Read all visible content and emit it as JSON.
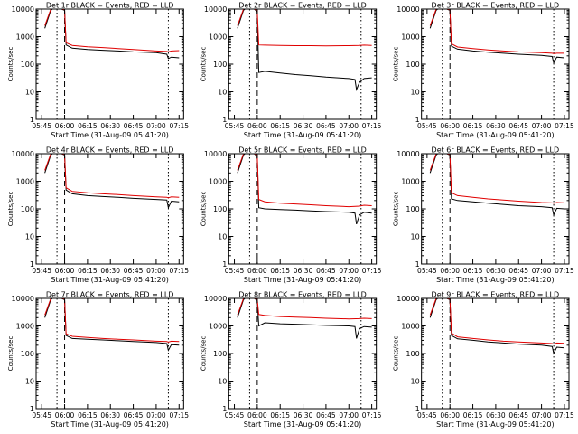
{
  "chart_data": [
    {
      "type": "line",
      "title": "Det 1r BLACK = Events, RED = LLD",
      "xlabel": "Start Time (31-Aug-09 05:41:20)",
      "ylabel": "Counts/sec",
      "yscale": "log",
      "ylim": [
        1,
        10000
      ],
      "x_ticks": [
        "05:45",
        "06:00",
        "06:15",
        "06:30",
        "06:45",
        "07:00",
        "07:15"
      ],
      "y_ticks": [
        "1",
        "10",
        "100",
        "1000",
        "10000"
      ],
      "grid": false,
      "dashed_marker": "06:00",
      "dotted_markers": [
        "05:55",
        "07:08"
      ],
      "series": [
        {
          "name": "Events",
          "color": "#000000",
          "x": [
            "05:47",
            "05:51",
            "05:52",
            "05:55",
            "05:58",
            "06:00",
            "06:01",
            "06:05",
            "06:15",
            "06:25",
            "06:35",
            "06:45",
            "07:00",
            "07:07",
            "07:08",
            "07:10",
            "07:15"
          ],
          "y": [
            2000,
            9000,
            10000,
            10000,
            10000,
            9000,
            500,
            380,
            340,
            320,
            300,
            280,
            260,
            230,
            160,
            180,
            170
          ]
        },
        {
          "name": "LLD",
          "color": "#e00000",
          "x": [
            "05:47",
            "05:51",
            "05:52",
            "05:55",
            "05:58",
            "06:00",
            "06:01",
            "06:05",
            "06:15",
            "06:25",
            "06:35",
            "06:45",
            "07:00",
            "07:07",
            "07:08",
            "07:10",
            "07:15"
          ],
          "y": [
            2500,
            10000,
            10000,
            10000,
            10000,
            9500,
            600,
            480,
            430,
            400,
            370,
            340,
            300,
            290,
            280,
            300,
            310
          ]
        }
      ]
    },
    {
      "type": "line",
      "title": "Det 2r BLACK = Events, RED = LLD",
      "xlabel": "Start Time (31-Aug-09 05:41:20)",
      "ylabel": "Counts/sec",
      "yscale": "log",
      "ylim": [
        1,
        10000
      ],
      "x_ticks": [
        "05:45",
        "06:00",
        "06:15",
        "06:30",
        "06:45",
        "07:00",
        "07:15"
      ],
      "y_ticks": [
        "1",
        "10",
        "100",
        "1000",
        "10000"
      ],
      "grid": false,
      "dashed_marker": "06:00",
      "dotted_markers": [
        "05:55",
        "07:08"
      ],
      "series": [
        {
          "name": "Events",
          "color": "#000000",
          "x": [
            "05:47",
            "05:51",
            "05:52",
            "05:55",
            "05:58",
            "06:00",
            "06:01",
            "06:05",
            "06:15",
            "06:25",
            "06:35",
            "06:45",
            "07:00",
            "07:04",
            "07:05",
            "07:07",
            "07:10",
            "07:15"
          ],
          "y": [
            2000,
            9000,
            10000,
            10000,
            10000,
            8000,
            50,
            55,
            48,
            42,
            38,
            34,
            30,
            28,
            12,
            22,
            30,
            32
          ]
        },
        {
          "name": "LLD",
          "color": "#e00000",
          "x": [
            "05:47",
            "05:51",
            "05:52",
            "05:55",
            "05:58",
            "06:00",
            "06:01",
            "06:05",
            "06:15",
            "06:25",
            "06:35",
            "06:45",
            "07:00",
            "07:07",
            "07:10",
            "07:15"
          ],
          "y": [
            2500,
            10000,
            10000,
            10000,
            10000,
            9000,
            500,
            490,
            480,
            470,
            470,
            460,
            470,
            480,
            490,
            480
          ]
        }
      ]
    },
    {
      "type": "line",
      "title": "Det 3r BLACK = Events, RED = LLD",
      "xlabel": "Start Time (31-Aug-09 05:41:20)",
      "ylabel": "Counts/sec",
      "yscale": "log",
      "ylim": [
        1,
        10000
      ],
      "x_ticks": [
        "05:45",
        "06:00",
        "06:15",
        "06:30",
        "06:45",
        "07:00",
        "07:15"
      ],
      "y_ticks": [
        "1",
        "10",
        "100",
        "1000",
        "10000"
      ],
      "grid": false,
      "dashed_marker": "06:00",
      "dotted_markers": [
        "05:55",
        "07:08"
      ],
      "series": [
        {
          "name": "Events",
          "color": "#000000",
          "x": [
            "05:47",
            "05:51",
            "05:52",
            "05:55",
            "05:58",
            "06:00",
            "06:01",
            "06:05",
            "06:15",
            "06:25",
            "06:35",
            "06:45",
            "07:00",
            "07:07",
            "07:08",
            "07:10",
            "07:15"
          ],
          "y": [
            2000,
            9000,
            10000,
            10000,
            10000,
            9000,
            450,
            350,
            300,
            270,
            250,
            230,
            210,
            190,
            110,
            180,
            170
          ]
        },
        {
          "name": "LLD",
          "color": "#e00000",
          "x": [
            "05:47",
            "05:51",
            "05:52",
            "05:55",
            "05:58",
            "06:00",
            "06:01",
            "06:05",
            "06:15",
            "06:25",
            "06:35",
            "06:45",
            "07:00",
            "07:07",
            "07:08",
            "07:10",
            "07:15"
          ],
          "y": [
            2500,
            10000,
            10000,
            10000,
            10000,
            9500,
            550,
            420,
            370,
            330,
            300,
            280,
            260,
            250,
            240,
            250,
            250
          ]
        }
      ]
    },
    {
      "type": "line",
      "title": "Det 4r BLACK = Events, RED = LLD",
      "xlabel": "Start Time (31-Aug-09 05:41:20)",
      "ylabel": "Counts/sec",
      "yscale": "log",
      "ylim": [
        1,
        10000
      ],
      "x_ticks": [
        "05:45",
        "06:00",
        "06:15",
        "06:30",
        "06:45",
        "07:00",
        "07:15"
      ],
      "y_ticks": [
        "1",
        "10",
        "100",
        "1000",
        "10000"
      ],
      "grid": false,
      "dashed_marker": "06:00",
      "dotted_markers": [
        "05:55",
        "07:08"
      ],
      "series": [
        {
          "name": "Events",
          "color": "#000000",
          "x": [
            "05:47",
            "05:51",
            "05:52",
            "05:55",
            "05:58",
            "06:00",
            "06:01",
            "06:05",
            "06:15",
            "06:25",
            "06:35",
            "06:45",
            "07:00",
            "07:07",
            "07:08",
            "07:10",
            "07:15"
          ],
          "y": [
            2000,
            9000,
            10000,
            10000,
            10000,
            9000,
            480,
            350,
            300,
            280,
            260,
            240,
            220,
            210,
            110,
            190,
            180
          ]
        },
        {
          "name": "LLD",
          "color": "#e00000",
          "x": [
            "05:47",
            "05:51",
            "05:52",
            "05:55",
            "05:58",
            "06:00",
            "06:01",
            "06:05",
            "06:15",
            "06:25",
            "06:35",
            "06:45",
            "07:00",
            "07:07",
            "07:08",
            "07:10",
            "07:15"
          ],
          "y": [
            2500,
            10000,
            10000,
            10000,
            10000,
            9500,
            580,
            430,
            380,
            350,
            330,
            300,
            270,
            260,
            250,
            270,
            260
          ]
        }
      ]
    },
    {
      "type": "line",
      "title": "Det 5r BLACK = Events, RED = LLD",
      "xlabel": "Start Time (31-Aug-09 05:41:20)",
      "ylabel": "Counts/sec",
      "yscale": "log",
      "ylim": [
        1,
        10000
      ],
      "x_ticks": [
        "05:45",
        "06:00",
        "06:15",
        "06:30",
        "06:45",
        "07:00",
        "07:15"
      ],
      "y_ticks": [
        "1",
        "10",
        "100",
        "1000",
        "10000"
      ],
      "grid": false,
      "dashed_marker": "06:00",
      "dotted_markers": [
        "05:55",
        "07:08"
      ],
      "series": [
        {
          "name": "Events",
          "color": "#000000",
          "x": [
            "05:47",
            "05:51",
            "05:52",
            "05:55",
            "05:58",
            "06:00",
            "06:01",
            "06:05",
            "06:15",
            "06:25",
            "06:35",
            "06:45",
            "07:00",
            "07:04",
            "07:05",
            "07:07",
            "07:10",
            "07:15"
          ],
          "y": [
            2000,
            9000,
            10000,
            10000,
            10000,
            8000,
            110,
            100,
            95,
            90,
            85,
            80,
            75,
            70,
            28,
            60,
            75,
            70
          ]
        },
        {
          "name": "LLD",
          "color": "#e00000",
          "x": [
            "05:47",
            "05:51",
            "05:52",
            "05:55",
            "05:58",
            "06:00",
            "06:01",
            "06:05",
            "06:15",
            "06:25",
            "06:35",
            "06:45",
            "07:00",
            "07:07",
            "07:10",
            "07:15"
          ],
          "y": [
            2500,
            10000,
            10000,
            10000,
            10000,
            9000,
            220,
            180,
            160,
            150,
            140,
            130,
            120,
            125,
            135,
            130
          ]
        }
      ]
    },
    {
      "type": "line",
      "title": "Det 6r BLACK = Events, RED = LLD",
      "xlabel": "Start Time (31-Aug-09 05:41:20)",
      "ylabel": "Counts/sec",
      "yscale": "log",
      "ylim": [
        1,
        10000
      ],
      "x_ticks": [
        "05:45",
        "06:00",
        "06:15",
        "06:30",
        "06:45",
        "07:00",
        "07:15"
      ],
      "y_ticks": [
        "1",
        "10",
        "100",
        "1000",
        "10000"
      ],
      "grid": false,
      "dashed_marker": "06:00",
      "dotted_markers": [
        "05:55",
        "07:08"
      ],
      "series": [
        {
          "name": "Events",
          "color": "#000000",
          "x": [
            "05:47",
            "05:51",
            "05:52",
            "05:55",
            "05:58",
            "06:00",
            "06:01",
            "06:05",
            "06:15",
            "06:25",
            "06:35",
            "06:45",
            "07:00",
            "07:07",
            "07:08",
            "07:10",
            "07:15"
          ],
          "y": [
            2000,
            9000,
            10000,
            10000,
            10000,
            9000,
            230,
            200,
            180,
            160,
            145,
            130,
            120,
            110,
            60,
            105,
            100
          ]
        },
        {
          "name": "LLD",
          "color": "#e00000",
          "x": [
            "05:47",
            "05:51",
            "05:52",
            "05:55",
            "05:58",
            "06:00",
            "06:01",
            "06:05",
            "06:15",
            "06:25",
            "06:35",
            "06:45",
            "07:00",
            "07:07",
            "07:08",
            "07:10",
            "07:15"
          ],
          "y": [
            2500,
            10000,
            10000,
            10000,
            10000,
            9500,
            380,
            300,
            260,
            230,
            210,
            190,
            170,
            165,
            160,
            170,
            165
          ]
        }
      ]
    },
    {
      "type": "line",
      "title": "Det 7r BLACK = Events, RED = LLD",
      "xlabel": "Start Time (31-Aug-09 05:41:20)",
      "ylabel": "Counts/sec",
      "yscale": "log",
      "ylim": [
        1,
        10000
      ],
      "x_ticks": [
        "05:45",
        "06:00",
        "06:15",
        "06:30",
        "06:45",
        "07:00",
        "07:15"
      ],
      "y_ticks": [
        "1",
        "10",
        "100",
        "1000",
        "10000"
      ],
      "grid": false,
      "dashed_marker": "06:00",
      "dotted_markers": [
        "05:55",
        "07:08"
      ],
      "series": [
        {
          "name": "Events",
          "color": "#000000",
          "x": [
            "05:47",
            "05:51",
            "05:52",
            "05:55",
            "05:58",
            "06:00",
            "06:01",
            "06:05",
            "06:15",
            "06:25",
            "06:35",
            "06:45",
            "07:00",
            "07:07",
            "07:08",
            "07:10",
            "07:15"
          ],
          "y": [
            2000,
            9000,
            10000,
            10000,
            10000,
            9000,
            450,
            350,
            330,
            310,
            290,
            270,
            250,
            230,
            130,
            210,
            200
          ]
        },
        {
          "name": "LLD",
          "color": "#e00000",
          "x": [
            "05:47",
            "05:51",
            "05:52",
            "05:55",
            "05:58",
            "06:00",
            "06:01",
            "06:05",
            "06:15",
            "06:25",
            "06:35",
            "06:45",
            "07:00",
            "07:07",
            "07:08",
            "07:10",
            "07:15"
          ],
          "y": [
            2500,
            10000,
            10000,
            10000,
            10000,
            9500,
            520,
            420,
            380,
            350,
            330,
            310,
            280,
            270,
            260,
            280,
            270
          ]
        }
      ]
    },
    {
      "type": "line",
      "title": "Det 8r BLACK = Events, RED = LLD",
      "xlabel": "Start Time (31-Aug-09 05:41:20)",
      "ylabel": "Counts/sec",
      "yscale": "log",
      "ylim": [
        1,
        10000
      ],
      "x_ticks": [
        "05:45",
        "06:00",
        "06:15",
        "06:30",
        "06:45",
        "07:00",
        "07:15"
      ],
      "y_ticks": [
        "1",
        "10",
        "100",
        "1000",
        "10000"
      ],
      "grid": false,
      "dashed_marker": "06:00",
      "dotted_markers": [
        "05:55",
        "07:08"
      ],
      "series": [
        {
          "name": "Events",
          "color": "#000000",
          "x": [
            "05:47",
            "05:51",
            "05:52",
            "05:55",
            "05:58",
            "06:00",
            "06:01",
            "06:05",
            "06:15",
            "06:25",
            "06:35",
            "06:45",
            "07:00",
            "07:04",
            "07:05",
            "07:07",
            "07:10",
            "07:15"
          ],
          "y": [
            2000,
            9000,
            10000,
            10000,
            10000,
            8500,
            1000,
            1300,
            1200,
            1150,
            1100,
            1050,
            1000,
            950,
            350,
            800,
            950,
            900
          ]
        },
        {
          "name": "LLD",
          "color": "#e00000",
          "x": [
            "05:47",
            "05:51",
            "05:52",
            "05:55",
            "05:58",
            "06:00",
            "06:01",
            "06:05",
            "06:15",
            "06:25",
            "06:35",
            "06:45",
            "07:00",
            "07:07",
            "07:10",
            "07:15"
          ],
          "y": [
            2500,
            10000,
            10000,
            10000,
            10000,
            9500,
            2600,
            2400,
            2200,
            2100,
            2000,
            1900,
            1800,
            1850,
            1900,
            1850
          ]
        }
      ]
    },
    {
      "type": "line",
      "title": "Det 9r BLACK = Events, RED = LLD",
      "xlabel": "Start Time (31-Aug-09 05:41:20)",
      "ylabel": "Counts/sec",
      "yscale": "log",
      "ylim": [
        1,
        10000
      ],
      "x_ticks": [
        "05:45",
        "06:00",
        "06:15",
        "06:30",
        "06:45",
        "07:00",
        "07:15"
      ],
      "y_ticks": [
        "1",
        "10",
        "100",
        "1000",
        "10000"
      ],
      "grid": false,
      "dashed_marker": "06:00",
      "dotted_markers": [
        "05:55",
        "07:08"
      ],
      "series": [
        {
          "name": "Events",
          "color": "#000000",
          "x": [
            "05:47",
            "05:51",
            "05:52",
            "05:55",
            "05:58",
            "06:00",
            "06:01",
            "06:05",
            "06:15",
            "06:25",
            "06:35",
            "06:45",
            "07:00",
            "07:07",
            "07:08",
            "07:10",
            "07:15"
          ],
          "y": [
            2000,
            9000,
            10000,
            10000,
            10000,
            9000,
            450,
            340,
            300,
            260,
            240,
            220,
            200,
            180,
            100,
            170,
            160
          ]
        },
        {
          "name": "LLD",
          "color": "#e00000",
          "x": [
            "05:47",
            "05:51",
            "05:52",
            "05:55",
            "05:58",
            "06:00",
            "06:01",
            "06:05",
            "06:15",
            "06:25",
            "06:35",
            "06:45",
            "07:00",
            "07:07",
            "07:08",
            "07:10",
            "07:15"
          ],
          "y": [
            2500,
            10000,
            10000,
            10000,
            10000,
            9500,
            550,
            400,
            350,
            310,
            280,
            260,
            240,
            230,
            220,
            240,
            235
          ]
        }
      ]
    }
  ]
}
